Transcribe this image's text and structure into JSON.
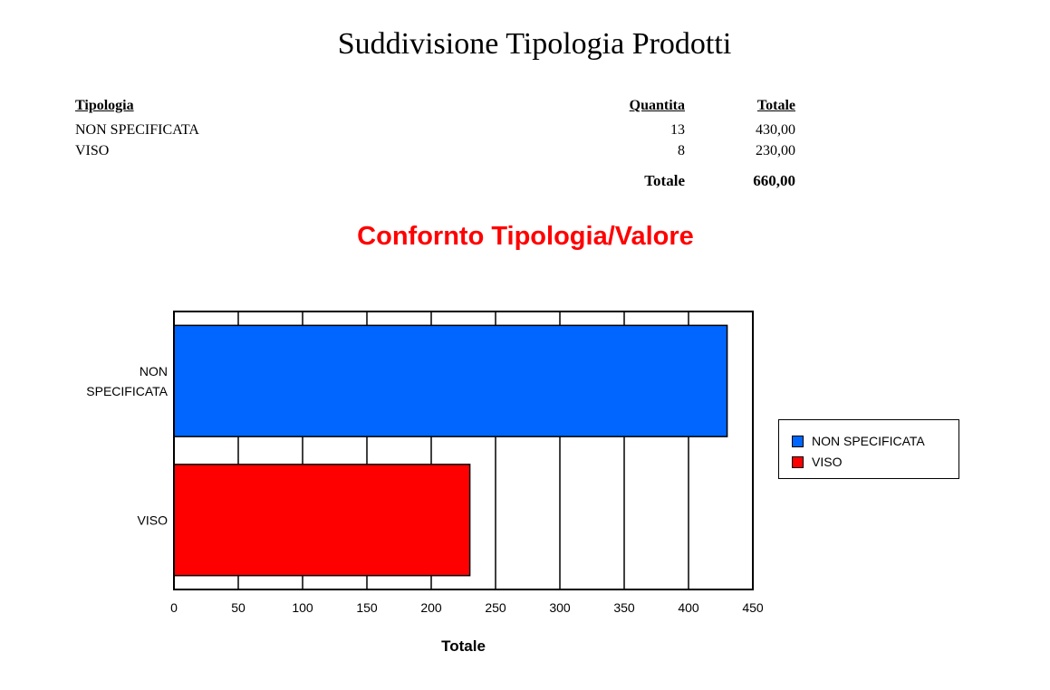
{
  "report": {
    "title": "Suddivisione Tipologia Prodotti",
    "headers": {
      "tipologia": "Tipologia",
      "quantita": "Quantita",
      "totale": "Totale"
    },
    "rows": [
      {
        "tipologia": "NON SPECIFICATA",
        "quantita": "13",
        "totale": "430,00"
      },
      {
        "tipologia": "VISO",
        "quantita": "8",
        "totale": "230,00"
      }
    ],
    "grand_total": {
      "label": "Totale",
      "value": "660,00"
    }
  },
  "chart_data": {
    "type": "bar",
    "orientation": "horizontal",
    "title": "Confornto Tipologia/Valore",
    "categories": [
      "NON SPECIFICATA",
      "VISO"
    ],
    "category_labels": [
      [
        "NON",
        "SPECIFICATA"
      ],
      [
        "VISO"
      ]
    ],
    "values": [
      430,
      230
    ],
    "colors": [
      "#0066ff",
      "#ff0000"
    ],
    "xlabel": "Totale",
    "ylabel": "",
    "xlim": [
      0,
      450
    ],
    "xticks": [
      0,
      50,
      100,
      150,
      200,
      250,
      300,
      350,
      400,
      450
    ],
    "grid": true,
    "legend": {
      "placement": "right",
      "entries": [
        {
          "label": "NON SPECIFICATA",
          "color": "#0066ff"
        },
        {
          "label": "VISO",
          "color": "#ff0000"
        }
      ]
    }
  }
}
